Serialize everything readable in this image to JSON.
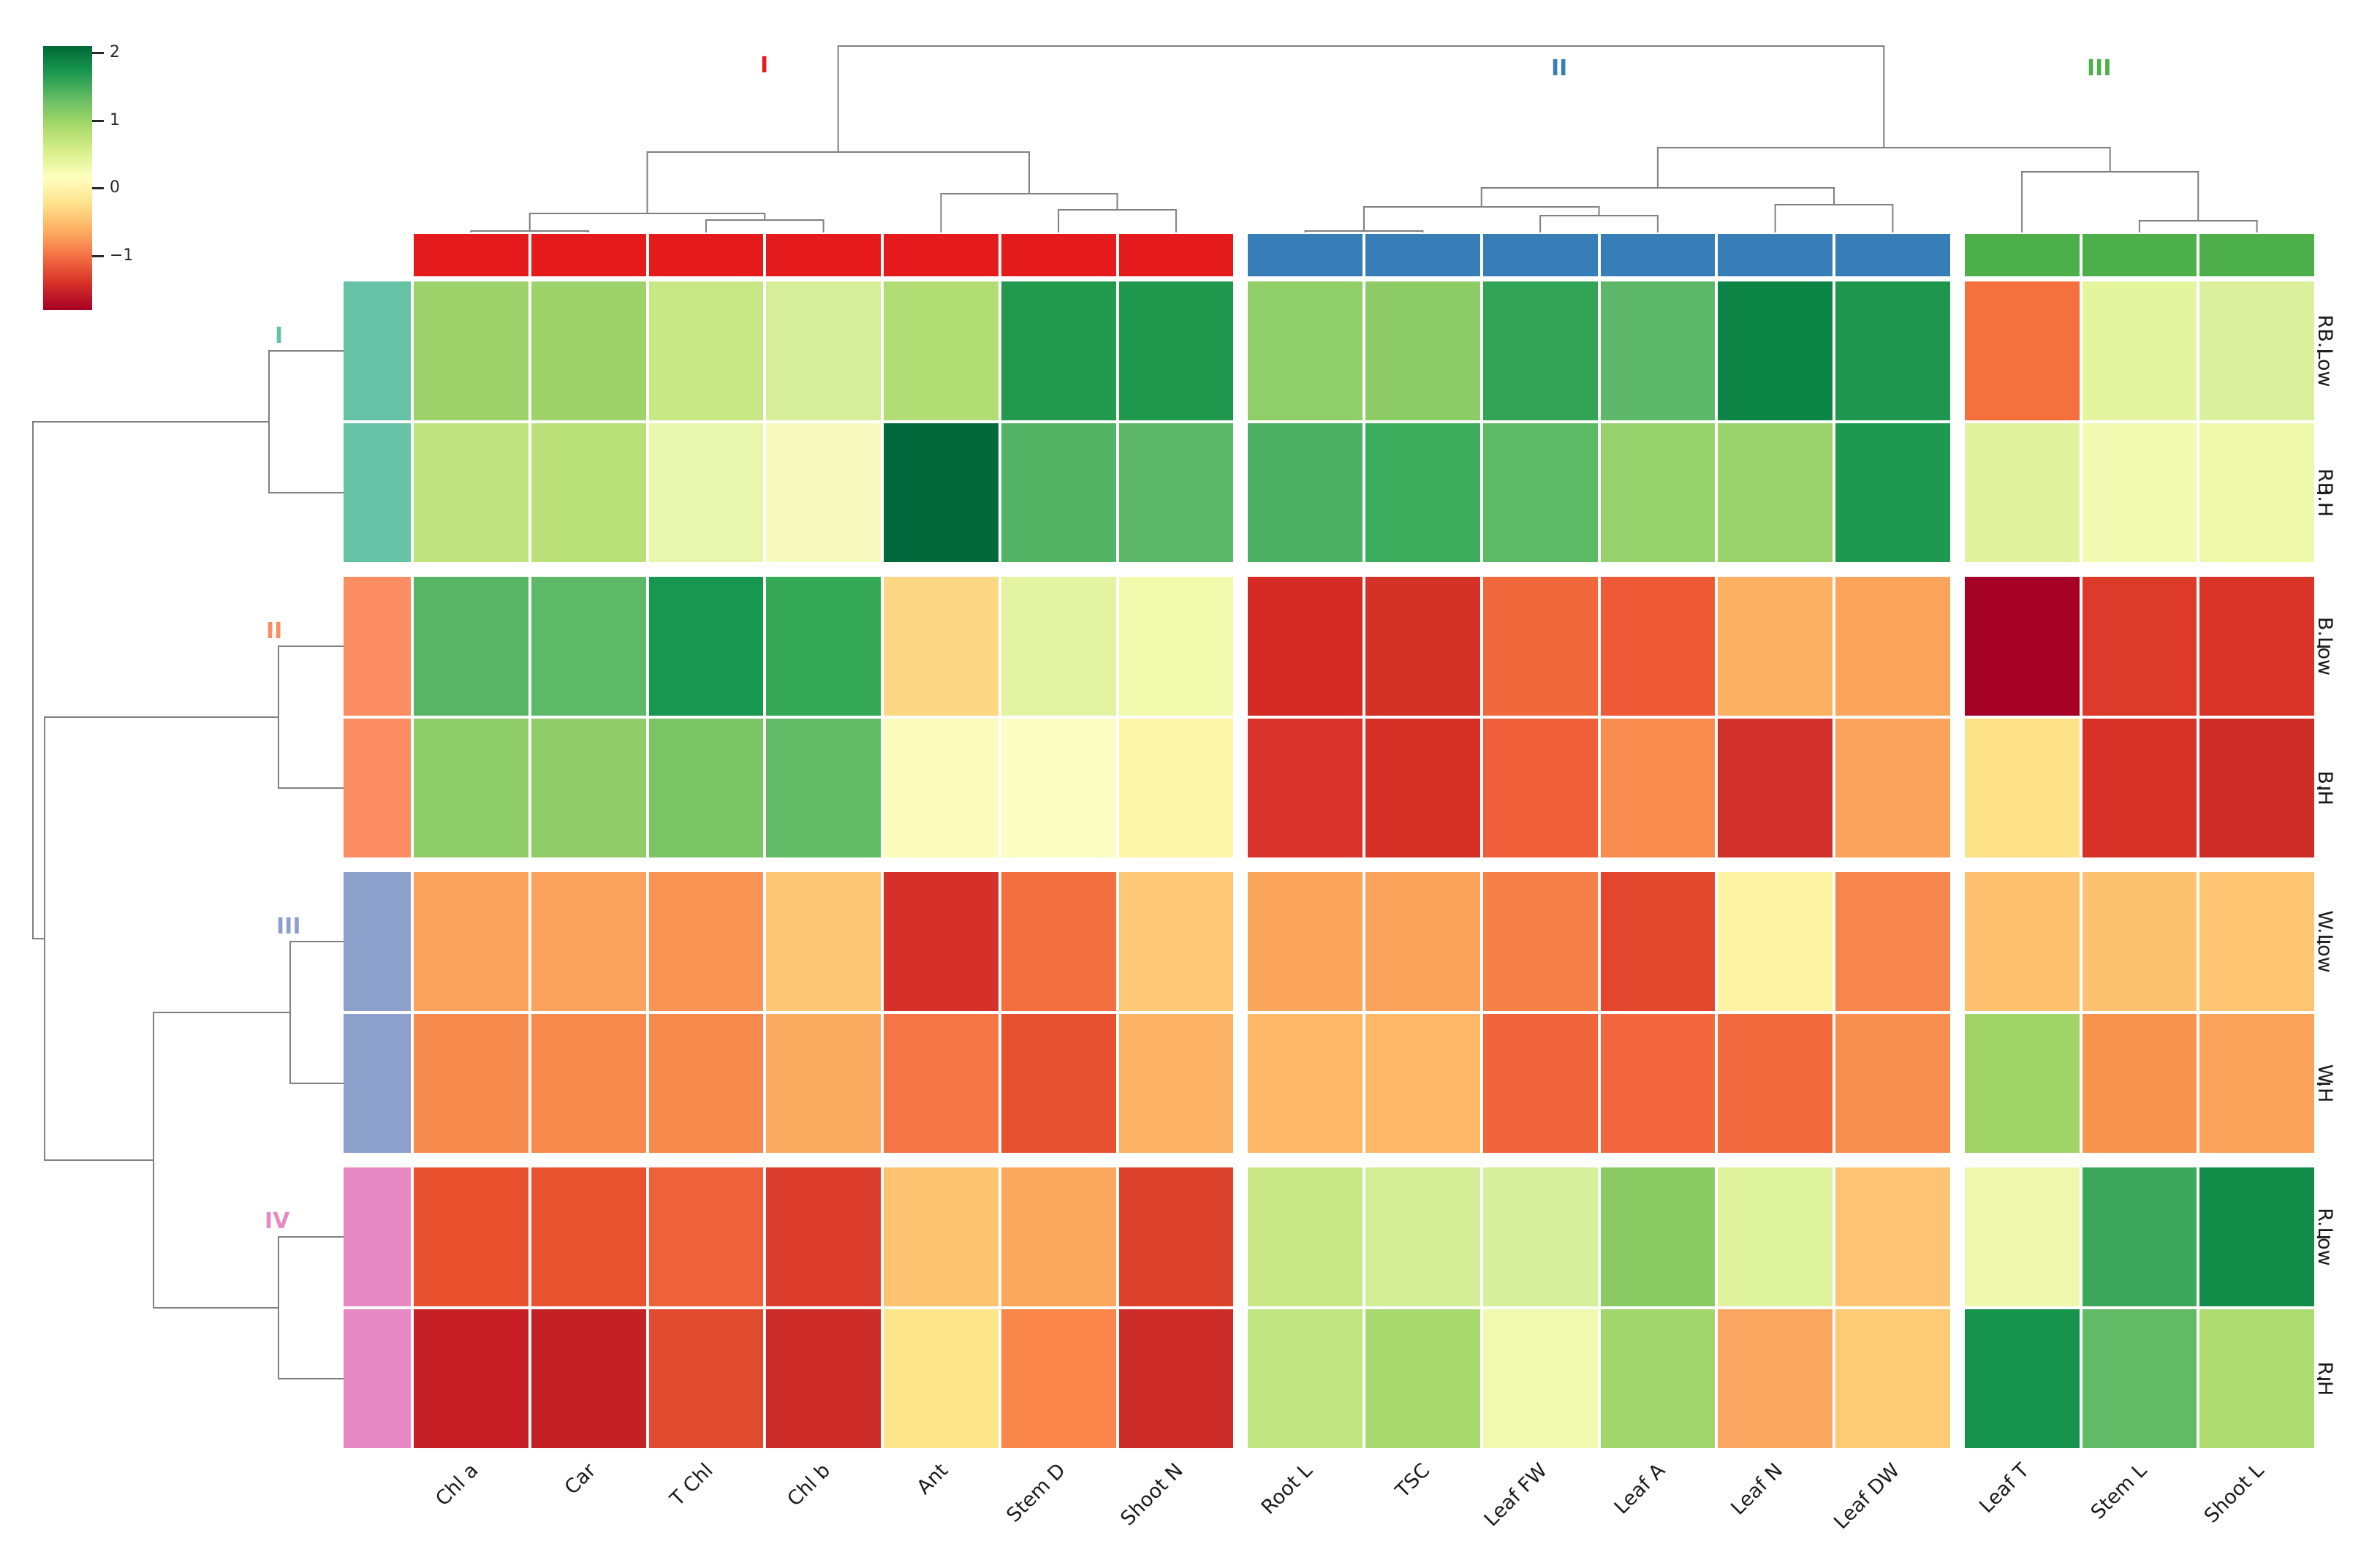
{
  "legend": {
    "colormap": "RdYlGn",
    "ticks": [
      {
        "label": "2",
        "value": 2
      },
      {
        "label": "1",
        "value": 1
      },
      {
        "label": "0",
        "value": 0
      },
      {
        "label": "−1",
        "value": -1
      }
    ],
    "vmin": -1.8,
    "vmax": 2.1
  },
  "column_clusters": [
    {
      "label": "I",
      "color": "#e41a1c",
      "columns": 7
    },
    {
      "label": "II",
      "color": "#377eb8",
      "columns": 6
    },
    {
      "label": "III",
      "color": "#4daf4a",
      "columns": 3
    }
  ],
  "row_clusters": [
    {
      "label": "I",
      "color": "#66c2a5",
      "rows": 2
    },
    {
      "label": "II",
      "color": "#fc8d62",
      "rows": 2
    },
    {
      "label": "III",
      "color": "#8da0cb",
      "rows": 2
    },
    {
      "label": "IV",
      "color": "#e78ac3",
      "rows": 2
    }
  ],
  "chart_data": {
    "type": "heatmap",
    "title": "",
    "columns": [
      "Chl a",
      "Car",
      "T Chl",
      "Chl b",
      "Ant",
      "Stem D",
      "Shoot N",
      "Root L",
      "TSC",
      "Leaf FW",
      "Leaf A",
      "Leaf N",
      "Leaf DW",
      "Leaf T",
      "Stem L",
      "Shoot L"
    ],
    "rows": [
      "RB.Low",
      "RB.H",
      "B.Low",
      "B.H",
      "W.Low",
      "W.H",
      "R.Low",
      "R.H"
    ],
    "column_cluster_of": [
      "I",
      "I",
      "I",
      "I",
      "I",
      "I",
      "I",
      "II",
      "II",
      "II",
      "II",
      "II",
      "II",
      "III",
      "III",
      "III"
    ],
    "row_cluster_of": [
      "I",
      "I",
      "II",
      "II",
      "III",
      "III",
      "IV",
      "IV"
    ],
    "scale": "z-score",
    "values": [
      [
        1.0,
        1.0,
        0.6,
        0.5,
        0.85,
        1.75,
        1.78,
        1.15,
        1.17,
        1.6,
        1.4,
        2.0,
        1.8,
        -1.0,
        0.4,
        0.45
      ],
      [
        0.8,
        0.82,
        0.3,
        0.1,
        2.1,
        1.45,
        1.4,
        1.5,
        1.55,
        1.42,
        1.05,
        1.03,
        1.76,
        0.42,
        0.2,
        0.28
      ],
      [
        1.43,
        1.4,
        1.82,
        1.58,
        -0.3,
        0.38,
        0.22,
        -1.4,
        -1.36,
        -1.0,
        -1.07,
        -0.52,
        -0.6,
        -1.8,
        -1.28,
        -1.33
      ],
      [
        1.1,
        1.1,
        1.2,
        1.33,
        0.1,
        0.08,
        -0.03,
        -1.35,
        -1.36,
        -1.02,
        -0.78,
        -1.38,
        -0.6,
        -0.2,
        -1.33,
        -1.42
      ],
      [
        -0.6,
        -0.6,
        -0.68,
        -0.32,
        -1.33,
        -0.95,
        -0.3,
        -0.58,
        -0.6,
        -0.85,
        -1.2,
        -0.05,
        -0.8,
        -0.38,
        -0.37,
        -0.35
      ],
      [
        -0.77,
        -0.77,
        -0.78,
        -0.52,
        -0.9,
        -1.12,
        -0.48,
        -0.43,
        -0.44,
        -1.0,
        -0.99,
        -0.97,
        -0.73,
        1.0,
        -0.7,
        -0.6
      ],
      [
        -1.12,
        -1.11,
        -1.02,
        -1.25,
        -0.33,
        -0.55,
        -1.22,
        0.62,
        0.52,
        0.52,
        1.12,
        0.45,
        -0.32,
        0.25,
        1.52,
        1.92
      ],
      [
        -1.47,
        -1.48,
        -1.16,
        -1.4,
        -0.18,
        -0.82,
        -1.4,
        0.72,
        0.95,
        0.25,
        1.0,
        -0.52,
        -0.28,
        1.78,
        1.35,
        0.92
      ]
    ],
    "cell_colors": [
      [
        "#9ed36c",
        "#9ed36c",
        "#c8e885",
        "#d7ef9a",
        "#b2dd75",
        "#23994e",
        "#1f974d",
        "#8fce68",
        "#8ccb66",
        "#33a456",
        "#5cb868",
        "#0c8446",
        "#1e964d",
        "#f4713e",
        "#e4f49f",
        "#daf09c"
      ],
      [
        "#bfe37e",
        "#b9e079",
        "#e9f6ae",
        "#f7fbc0",
        "#00683a",
        "#54b465",
        "#5cb868",
        "#4db163",
        "#3cab5c",
        "#5eb966",
        "#97d16b",
        "#9ad26c",
        "#1f9950",
        "#e2f39f",
        "#f2fab2",
        "#eef8ab"
      ],
      [
        "#57b565",
        "#5db967",
        "#179750",
        "#35a956",
        "#fdd884",
        "#e4f3a2",
        "#f2faae",
        "#d62a26",
        "#d43127",
        "#f2683d",
        "#ee5a36",
        "#fbb161",
        "#fba55c",
        "#a50026",
        "#dc3b2b",
        "#d93428"
      ],
      [
        "#8fcd68",
        "#90cd68",
        "#7cc566",
        "#62bb67",
        "#fcfdbc",
        "#fbfdc2",
        "#fdf5a7",
        "#d8322a",
        "#d53127",
        "#ef603a",
        "#f98d50",
        "#d2302a",
        "#fba25c",
        "#fde188",
        "#d73228",
        "#cf2d27"
      ],
      [
        "#fba25c",
        "#fba35d",
        "#f99554",
        "#fdc674",
        "#d6302a",
        "#f2703f",
        "#fdc875",
        "#fba55d",
        "#fba25b",
        "#f58149",
        "#e2472e",
        "#fdf3a2",
        "#f6864b",
        "#fdc06f",
        "#fdc26f",
        "#fdc471"
      ],
      [
        "#f68b4d",
        "#f68b4d",
        "#f68a4c",
        "#fbab60",
        "#f47647",
        "#e8512f",
        "#fbb264",
        "#fdb867",
        "#fdb767",
        "#f2643c",
        "#f2673d",
        "#f16a3e",
        "#f88f51",
        "#a0d467",
        "#f9944f",
        "#fba35a"
      ],
      [
        "#e9512f",
        "#ea5330",
        "#ef613a",
        "#dc3c2b",
        "#fdc371",
        "#fba85e",
        "#dd422c",
        "#c9e787",
        "#d4ee98",
        "#d6ef9a",
        "#8cca64",
        "#dff29c",
        "#fdc473",
        "#eef8ad",
        "#3ba85b",
        "#128c49"
      ],
      [
        "#c62026",
        "#c42127",
        "#e04b2e",
        "#cc2a27",
        "#fde58c",
        "#f9854a",
        "#cc2b27",
        "#c0e482",
        "#a8d96f",
        "#f0f9b0",
        "#a2d66c",
        "#fba761",
        "#fdcb76",
        "#16944d",
        "#60ba66",
        "#aedb72"
      ]
    ],
    "legend_position": "top-left",
    "grid": false
  }
}
